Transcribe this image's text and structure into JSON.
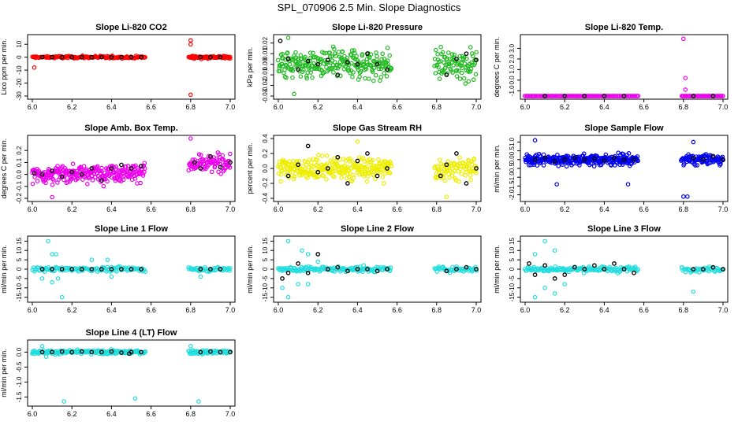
{
  "page_title": "SPL_070906  2.5 Min. Slope Diagnostics",
  "chart_data": [
    {
      "type": "scatter",
      "title": "Slope Li-820 CO2",
      "ylabel": "Lico ppm per min.",
      "xlim": [
        6.0,
        7.0
      ],
      "xticks": [
        "6.0",
        "6.2",
        "6.4",
        "6.6",
        "6.8",
        "7.0"
      ],
      "ylim": [
        -30,
        15
      ],
      "yticks": [
        -30,
        -20,
        -10,
        0,
        10
      ],
      "ytick_labels": [
        "-30",
        "-20",
        "-10",
        "0",
        "10"
      ],
      "color": "#ff0000",
      "segments": [
        [
          6.0,
          6.57
        ],
        [
          6.79,
          7.0
        ]
      ],
      "points_per_segment": [
        140,
        80
      ],
      "center": 0,
      "spread": 0.8,
      "outliers": [
        [
          6.01,
          -8
        ],
        [
          6.8,
          13
        ],
        [
          6.8,
          10
        ],
        [
          6.8,
          -29
        ],
        [
          6.81,
          1
        ],
        [
          6.82,
          -1
        ]
      ],
      "black_points": [
        [
          6.05,
          0
        ],
        [
          6.1,
          0
        ],
        [
          6.15,
          0
        ],
        [
          6.2,
          0
        ],
        [
          6.25,
          0
        ],
        [
          6.3,
          0
        ],
        [
          6.35,
          0
        ],
        [
          6.4,
          0
        ],
        [
          6.45,
          0
        ],
        [
          6.5,
          0
        ],
        [
          6.55,
          0
        ],
        [
          6.85,
          0
        ],
        [
          6.9,
          0
        ],
        [
          6.95,
          0
        ]
      ]
    },
    {
      "type": "scatter",
      "title": "Slope Li-820 Pressure",
      "ylabel": "kPa per min.",
      "xlim": [
        6.0,
        7.0
      ],
      "xticks": [
        "6.0",
        "6.2",
        "6.4",
        "6.6",
        "6.8",
        "7.0"
      ],
      "ylim": [
        -0.03,
        0.025
      ],
      "yticks": [
        -0.03,
        -0.02,
        -0.01,
        0.0,
        0.01,
        0.02
      ],
      "ytick_labels": [
        "-0.03",
        "-0.02",
        "-0.01",
        "0.00",
        "0.01",
        "0.02"
      ],
      "color": "#22bb22",
      "segments": [
        [
          6.0,
          6.57
        ],
        [
          6.79,
          7.0
        ]
      ],
      "points_per_segment": [
        260,
        90
      ],
      "center": 0.0,
      "spread": 0.012,
      "outliers": [
        [
          6.05,
          0.025
        ],
        [
          6.08,
          -0.028
        ]
      ],
      "black_points": [
        [
          6.01,
          0.022
        ],
        [
          6.05,
          0.005
        ],
        [
          6.1,
          -0.005
        ],
        [
          6.15,
          0.003
        ],
        [
          6.2,
          0.0
        ],
        [
          6.25,
          0.004
        ],
        [
          6.3,
          -0.01
        ],
        [
          6.35,
          0.002
        ],
        [
          6.4,
          0.0
        ],
        [
          6.45,
          0.01
        ],
        [
          6.5,
          0.0
        ],
        [
          6.55,
          -0.005
        ],
        [
          6.85,
          -0.01
        ],
        [
          6.9,
          0.005
        ],
        [
          6.95,
          0.01
        ],
        [
          7.0,
          0.004
        ]
      ]
    },
    {
      "type": "scatter",
      "title": "Slope Li-820 Temp.",
      "ylabel": "degrees C per min.",
      "xlim": [
        6.0,
        7.0
      ],
      "xticks": [
        "6.0",
        "6.2",
        "6.4",
        "6.6",
        "6.8",
        "7.0"
      ],
      "ylim": [
        -1.5,
        4
      ],
      "yticks": [
        -1,
        0,
        1,
        2,
        3
      ],
      "ytick_labels": [
        "-1.0",
        "0.0",
        "1.0",
        "2.0",
        "3.0"
      ],
      "color": "#ee00ee",
      "segments": [
        [
          6.0,
          6.57
        ],
        [
          6.79,
          7.0
        ]
      ],
      "points_per_segment": [
        130,
        60
      ],
      "center": -1.5,
      "spread": 0.0,
      "outliers": [
        [
          6.8,
          3.9
        ],
        [
          6.81,
          -0.9
        ],
        [
          6.81,
          0.2
        ],
        [
          6.8,
          -1.5
        ]
      ],
      "black_points": [
        [
          6.1,
          -1.5
        ],
        [
          6.2,
          -1.5
        ],
        [
          6.3,
          -1.5
        ],
        [
          6.4,
          -1.5
        ],
        [
          6.5,
          -1.5
        ],
        [
          6.85,
          -1.5
        ],
        [
          6.95,
          -1.5
        ]
      ]
    },
    {
      "type": "scatter",
      "title": "Slope Amb. Box Temp.",
      "ylabel": "degrees C per min.",
      "xlim": [
        6.0,
        7.0
      ],
      "xticks": [
        "6.0",
        "6.2",
        "6.4",
        "6.6",
        "6.8",
        "7.0"
      ],
      "ylim": [
        -0.2,
        0.3
      ],
      "yticks": [
        -0.2,
        -0.1,
        0.0,
        0.1,
        0.2
      ],
      "ytick_labels": [
        "-0.2",
        "-0.1",
        "0.0",
        "0.1",
        "0.2"
      ],
      "color": "#ee00ee",
      "segments": [
        [
          6.0,
          6.57
        ],
        [
          6.79,
          7.0
        ]
      ],
      "points_per_segment": [
        280,
        90
      ],
      "center": 0.0,
      "spread": 0.06,
      "trend": 0.1,
      "outliers": [
        [
          6.8,
          0.3
        ],
        [
          6.1,
          -0.19
        ]
      ],
      "black_points": [
        [
          6.01,
          0.01
        ],
        [
          6.05,
          0.0
        ],
        [
          6.1,
          0.03
        ],
        [
          6.15,
          -0.02
        ],
        [
          6.2,
          0.02
        ],
        [
          6.25,
          0.0
        ],
        [
          6.3,
          0.05
        ],
        [
          6.35,
          -0.05
        ],
        [
          6.4,
          0.05
        ],
        [
          6.45,
          0.08
        ],
        [
          6.5,
          0.05
        ],
        [
          6.55,
          0.07
        ],
        [
          6.82,
          0.1
        ],
        [
          6.85,
          0.05
        ],
        [
          6.9,
          0.15
        ],
        [
          6.95,
          0.06
        ],
        [
          7.0,
          0.1
        ]
      ]
    },
    {
      "type": "scatter",
      "title": "Slope Gas Stream RH",
      "ylabel": "percent per min.",
      "xlim": [
        6.0,
        7.0
      ],
      "xticks": [
        "6.0",
        "6.2",
        "6.4",
        "6.6",
        "6.8",
        "7.0"
      ],
      "ylim": [
        -0.4,
        0.4
      ],
      "yticks": [
        -0.4,
        -0.2,
        0.0,
        0.2,
        0.4
      ],
      "ytick_labels": [
        "-0.4",
        "-0.2",
        "0.0",
        "0.2",
        "0.4"
      ],
      "color": "#eeee00",
      "segments": [
        [
          6.0,
          6.57
        ],
        [
          6.79,
          7.0
        ]
      ],
      "points_per_segment": [
        280,
        90
      ],
      "center": 0.0,
      "spread": 0.13,
      "outliers": [
        [
          6.85,
          -0.38
        ],
        [
          6.4,
          0.36
        ]
      ],
      "black_points": [
        [
          6.05,
          -0.1
        ],
        [
          6.1,
          0.05
        ],
        [
          6.15,
          0.3
        ],
        [
          6.2,
          -0.05
        ],
        [
          6.25,
          0.0
        ],
        [
          6.3,
          0.15
        ],
        [
          6.35,
          -0.2
        ],
        [
          6.4,
          0.1
        ],
        [
          6.45,
          0.2
        ],
        [
          6.5,
          -0.1
        ],
        [
          6.55,
          0.0
        ],
        [
          6.82,
          -0.1
        ],
        [
          6.85,
          0.05
        ],
        [
          6.9,
          0.2
        ],
        [
          6.95,
          -0.2
        ],
        [
          7.0,
          0.0
        ]
      ]
    },
    {
      "type": "scatter",
      "title": "Slope Sample Flow",
      "ylabel": "ml/min per min.",
      "xlim": [
        6.0,
        7.0
      ],
      "xticks": [
        "6.0",
        "6.2",
        "6.4",
        "6.6",
        "6.8",
        "7.0"
      ],
      "ylim": [
        -2.2,
        1.2
      ],
      "yticks": [
        -2.0,
        -1.5,
        -1.0,
        -0.5,
        0.0,
        0.5,
        1.0
      ],
      "ytick_labels": [
        "-2.0",
        "-1.5",
        "-1.0",
        "-0.5",
        "0.0",
        "0.5",
        "1.0"
      ],
      "color": "#0000ee",
      "segments": [
        [
          6.0,
          6.57
        ],
        [
          6.79,
          7.0
        ]
      ],
      "points_per_segment": [
        300,
        100
      ],
      "center": 0.0,
      "spread": 0.25,
      "outliers": [
        [
          6.16,
          -1.4
        ],
        [
          6.52,
          -1.4
        ],
        [
          6.8,
          -2.1
        ],
        [
          6.82,
          -2.1
        ],
        [
          6.05,
          1.1
        ],
        [
          6.85,
          1.0
        ]
      ],
      "black_points": [
        [
          6.05,
          0.0
        ],
        [
          6.1,
          0.1
        ],
        [
          6.15,
          -0.1
        ],
        [
          6.2,
          0.0
        ],
        [
          6.25,
          0.1
        ],
        [
          6.3,
          0.0
        ],
        [
          6.35,
          0.05
        ],
        [
          6.4,
          -0.05
        ],
        [
          6.45,
          0.1
        ],
        [
          6.5,
          0.0
        ],
        [
          6.55,
          0.0
        ],
        [
          6.85,
          0.1
        ],
        [
          6.9,
          0.0
        ],
        [
          6.95,
          0.2
        ],
        [
          7.0,
          0.0
        ]
      ]
    },
    {
      "type": "scatter",
      "title": "Slope Line 1 Flow",
      "ylabel": "ml/min per min.",
      "xlim": [
        6.0,
        7.0
      ],
      "xticks": [
        "6.0",
        "6.2",
        "6.4",
        "6.6",
        "6.8",
        "7.0"
      ],
      "ylim": [
        -16,
        16
      ],
      "yticks": [
        -15,
        -10,
        -5,
        0,
        5,
        10,
        15
      ],
      "ytick_labels": [
        "-15",
        "-10",
        "-5",
        "0",
        "5",
        "10",
        "15"
      ],
      "color": "#22dddd",
      "segments": [
        [
          6.0,
          6.57
        ],
        [
          6.79,
          7.0
        ]
      ],
      "points_per_segment": [
        120,
        50
      ],
      "center": 0,
      "spread": 1.0,
      "outliers": [
        [
          6.08,
          15
        ],
        [
          6.1,
          8
        ],
        [
          6.12,
          8
        ],
        [
          6.1,
          -7
        ],
        [
          6.13,
          -5
        ],
        [
          6.15,
          -15
        ],
        [
          6.05,
          -5
        ],
        [
          6.3,
          5
        ],
        [
          6.38,
          5
        ],
        [
          6.4,
          -4
        ],
        [
          6.85,
          -4
        ]
      ],
      "black_points": [
        [
          6.05,
          0
        ],
        [
          6.1,
          0
        ],
        [
          6.15,
          0
        ],
        [
          6.2,
          0
        ],
        [
          6.25,
          0
        ],
        [
          6.3,
          0
        ],
        [
          6.35,
          0
        ],
        [
          6.4,
          0
        ],
        [
          6.45,
          0
        ],
        [
          6.5,
          0
        ],
        [
          6.55,
          0
        ],
        [
          6.85,
          0
        ],
        [
          6.9,
          0
        ],
        [
          6.95,
          0
        ]
      ]
    },
    {
      "type": "scatter",
      "title": "Slope Line 2 Flow",
      "ylabel": "ml/min per min.",
      "xlim": [
        6.0,
        7.0
      ],
      "xticks": [
        "6.0",
        "6.2",
        "6.4",
        "6.6",
        "6.8",
        "7.0"
      ],
      "ylim": [
        -16,
        16
      ],
      "yticks": [
        -15,
        -10,
        -5,
        0,
        5,
        10,
        15
      ],
      "ytick_labels": [
        "-15",
        "-10",
        "-5",
        "0",
        "5",
        "10",
        "15"
      ],
      "color": "#22dddd",
      "segments": [
        [
          6.0,
          6.57
        ],
        [
          6.79,
          7.0
        ]
      ],
      "points_per_segment": [
        150,
        50
      ],
      "center": 0,
      "spread": 1.2,
      "outliers": [
        [
          6.05,
          15
        ],
        [
          6.12,
          10
        ],
        [
          6.15,
          8
        ],
        [
          6.02,
          -10
        ],
        [
          6.05,
          -15
        ],
        [
          6.1,
          -8
        ],
        [
          6.15,
          -8
        ],
        [
          6.2,
          4
        ]
      ],
      "black_points": [
        [
          6.02,
          -5
        ],
        [
          6.05,
          -2
        ],
        [
          6.1,
          3
        ],
        [
          6.15,
          -2
        ],
        [
          6.2,
          8
        ],
        [
          6.25,
          0
        ],
        [
          6.3,
          1
        ],
        [
          6.35,
          -1
        ],
        [
          6.4,
          0
        ],
        [
          6.45,
          0
        ],
        [
          6.5,
          -1
        ],
        [
          6.55,
          0
        ],
        [
          6.85,
          -1
        ],
        [
          6.9,
          0
        ],
        [
          6.95,
          1
        ],
        [
          7.0,
          0
        ]
      ]
    },
    {
      "type": "scatter",
      "title": "Slope Line 3 Flow",
      "ylabel": "ml/min per min.",
      "xlim": [
        6.0,
        7.0
      ],
      "xticks": [
        "6.0",
        "6.2",
        "6.4",
        "6.6",
        "6.8",
        "7.0"
      ],
      "ylim": [
        -16,
        16
      ],
      "yticks": [
        -15,
        -10,
        -5,
        0,
        5,
        10,
        15
      ],
      "ytick_labels": [
        "-15",
        "-10",
        "-5",
        "0",
        "5",
        "10",
        "15"
      ],
      "color": "#22dddd",
      "segments": [
        [
          6.0,
          6.57
        ],
        [
          6.79,
          7.0
        ]
      ],
      "points_per_segment": [
        150,
        50
      ],
      "center": 0,
      "spread": 1.2,
      "outliers": [
        [
          6.1,
          15
        ],
        [
          6.15,
          10
        ],
        [
          6.05,
          8
        ],
        [
          6.1,
          -10
        ],
        [
          6.05,
          -15
        ],
        [
          6.15,
          -13
        ],
        [
          6.2,
          -8
        ],
        [
          6.85,
          -12
        ]
      ],
      "black_points": [
        [
          6.02,
          3
        ],
        [
          6.05,
          -3
        ],
        [
          6.1,
          2
        ],
        [
          6.15,
          -5
        ],
        [
          6.2,
          -3
        ],
        [
          6.25,
          1
        ],
        [
          6.3,
          0
        ],
        [
          6.35,
          2
        ],
        [
          6.4,
          0
        ],
        [
          6.45,
          3
        ],
        [
          6.5,
          0
        ],
        [
          6.55,
          -2
        ],
        [
          6.85,
          0
        ],
        [
          6.9,
          0
        ],
        [
          6.95,
          1
        ],
        [
          7.0,
          0
        ]
      ]
    },
    {
      "type": "scatter",
      "title": "Slope Line 4 (LT) Flow",
      "ylabel": "ml/min per min.",
      "xlim": [
        6.0,
        7.0
      ],
      "xticks": [
        "6.0",
        "6.2",
        "6.4",
        "6.6",
        "6.8",
        "7.0"
      ],
      "ylim": [
        -1.7,
        0.3
      ],
      "yticks": [
        -1.5,
        -1.0,
        -0.5,
        0.0
      ],
      "ytick_labels": [
        "-1.5",
        "-1.0",
        "-0.5",
        "0.0"
      ],
      "color": "#22dddd",
      "segments": [
        [
          6.0,
          6.57
        ],
        [
          6.79,
          7.0
        ]
      ],
      "points_per_segment": [
        220,
        80
      ],
      "center": 0.0,
      "spread": 0.05,
      "outliers": [
        [
          6.16,
          -1.65
        ],
        [
          6.52,
          -1.55
        ],
        [
          6.84,
          -1.65
        ],
        [
          6.05,
          0.2
        ],
        [
          6.8,
          0.2
        ],
        [
          6.07,
          -0.15
        ]
      ],
      "black_points": [
        [
          6.05,
          0.0
        ],
        [
          6.1,
          0.0
        ],
        [
          6.15,
          0.02
        ],
        [
          6.2,
          0.0
        ],
        [
          6.25,
          0.02
        ],
        [
          6.3,
          0.0
        ],
        [
          6.35,
          0.0
        ],
        [
          6.4,
          0.02
        ],
        [
          6.45,
          -0.02
        ],
        [
          6.49,
          -0.05
        ],
        [
          6.5,
          0.0
        ],
        [
          6.55,
          0.0
        ],
        [
          6.85,
          0.0
        ],
        [
          6.9,
          0.02
        ],
        [
          6.95,
          0.0
        ],
        [
          7.0,
          0.0
        ]
      ]
    }
  ]
}
